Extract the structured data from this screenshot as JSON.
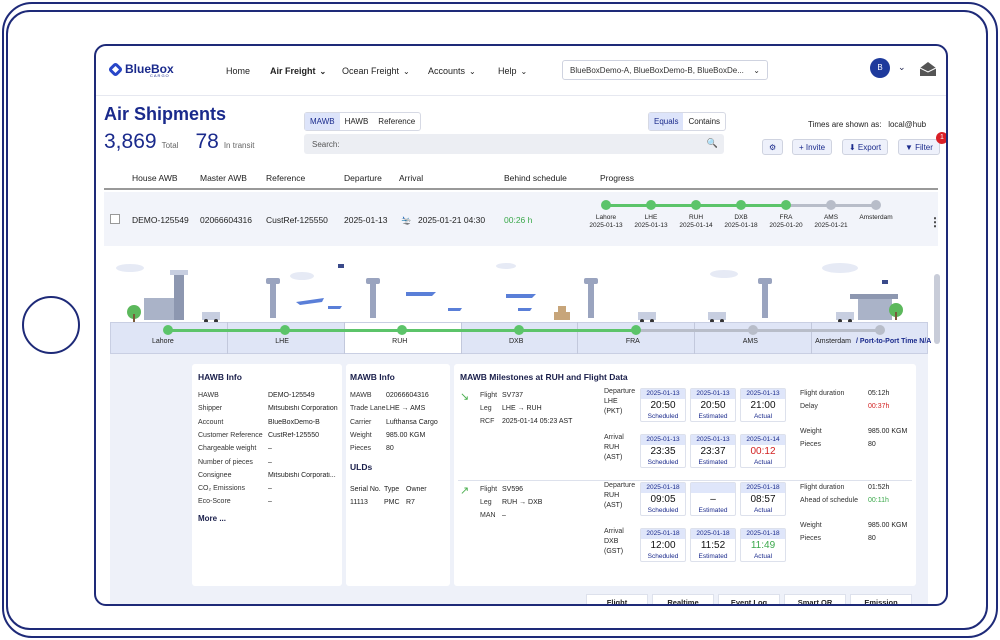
{
  "nav": {
    "brand": "BlueBox",
    "brand_sub": "CARGO",
    "items": [
      {
        "label": "Home"
      },
      {
        "label": "Air Freight"
      },
      {
        "label": "Ocean Freight"
      },
      {
        "label": "Accounts"
      },
      {
        "label": "Help"
      }
    ],
    "account_selector": "BlueBoxDemo-A, BlueBoxDemo-B, BlueBoxDe...",
    "avatar_initial": "B"
  },
  "header": {
    "title": "Air Shipments",
    "total_count": "3,869",
    "total_label": "Total",
    "transit_count": "78",
    "transit_label": "In transit",
    "search_type_tabs": [
      "MAWB",
      "HAWB",
      "Reference"
    ],
    "match_tabs": [
      "Equals",
      "Contains"
    ],
    "search_placeholder": "Search:",
    "times_label": "Times are shown as:",
    "times_value": "local@hub",
    "buttons": {
      "invite": "+ Invite",
      "export": "⬇ Export",
      "filter": "▼ Filter"
    },
    "filter_badge": "1"
  },
  "table": {
    "columns": [
      "House AWB",
      "Master AWB",
      "Reference",
      "Departure",
      "Arrival",
      "Behind schedule",
      "Progress"
    ],
    "row": {
      "house_awb": "DEMO-125549",
      "master_awb": "02066604316",
      "reference": "CustRef-125550",
      "departure": "2025-01-13",
      "arrival": "2025-01-21 04:30",
      "behind": "00:26 h",
      "progress": [
        {
          "code": "Lahore",
          "date": "2025-01-13",
          "done": true
        },
        {
          "code": "LHE",
          "date": "2025-01-13",
          "done": true
        },
        {
          "code": "RUH",
          "date": "2025-01-14",
          "done": true
        },
        {
          "code": "DXB",
          "date": "2025-01-18",
          "done": true
        },
        {
          "code": "FRA",
          "date": "2025-01-20",
          "done": true
        },
        {
          "code": "AMS",
          "date": "2025-01-21",
          "done": false
        },
        {
          "code": "Amsterdam",
          "date": "",
          "done": false
        }
      ]
    }
  },
  "stages": [
    "Lahore",
    "LHE",
    "RUH",
    "DXB",
    "FRA",
    "AMS",
    "Amsterdam"
  ],
  "stage_extra": "/ Port-to-Port Time N/A",
  "hawb_info": {
    "title": "HAWB Info",
    "fields": [
      {
        "k": "HAWB",
        "v": "DEMO-125549"
      },
      {
        "k": "Shipper",
        "v": "Mitsubishi Corporation"
      },
      {
        "k": "Account",
        "v": "BlueBoxDemo-B"
      },
      {
        "k": "Customer Reference",
        "v": "CustRef-125550"
      },
      {
        "k": "Chargeable weight",
        "v": "–"
      },
      {
        "k": "Number of pieces",
        "v": "–"
      },
      {
        "k": "Consignee",
        "v": "Mitsubishi Corporati..."
      },
      {
        "k": "CO₂ Emissions",
        "v": "–"
      },
      {
        "k": "Eco-Score",
        "v": "–"
      }
    ],
    "more": "More ..."
  },
  "mawb_info": {
    "title": "MAWB Info",
    "fields": [
      {
        "k": "MAWB",
        "v": "02066604316"
      },
      {
        "k": "Trade Lane",
        "v": "LHE → AMS"
      },
      {
        "k": "Carrier",
        "v": "Lufthansa Cargo"
      },
      {
        "k": "Weight",
        "v": "985.00  KGM"
      },
      {
        "k": "Pieces",
        "v": "80"
      }
    ],
    "uld_title": "ULDs",
    "uld_headers": [
      "Serial No.",
      "Type",
      "Owner"
    ],
    "uld_row": [
      "11113",
      "PMC",
      "R7"
    ]
  },
  "milestones": {
    "title": "MAWB Milestones at  RUH  and Flight Data",
    "flights": [
      {
        "flight": "SV737",
        "leg": "LHE → RUH",
        "rcf": "2025-01-14 05:23 AST",
        "dep_label": "Departure",
        "dep_place": "LHE",
        "dep_tz": "(PKT)",
        "dep": [
          {
            "date": "2025-01-13",
            "time": "20:50",
            "status": "Scheduled"
          },
          {
            "date": "2025-01-13",
            "time": "20:50",
            "status": "Estimated"
          },
          {
            "date": "2025-01-13",
            "time": "21:00",
            "status": "Actual"
          }
        ],
        "arr_label": "Arrival",
        "arr_place": "RUH",
        "arr_tz": "(AST)",
        "arr": [
          {
            "date": "2025-01-13",
            "time": "23:35",
            "status": "Scheduled"
          },
          {
            "date": "2025-01-13",
            "time": "23:37",
            "status": "Estimated"
          },
          {
            "date": "2025-01-14",
            "time": "00:12",
            "status": "Actual"
          }
        ],
        "side": [
          {
            "k": "Flight duration",
            "v": "05:12h"
          },
          {
            "k": "Delay",
            "v": "00:37h"
          },
          {
            "k": "Weight",
            "v": "985.00  KGM"
          },
          {
            "k": "Pieces",
            "v": "80"
          }
        ]
      },
      {
        "flight": "SV596",
        "leg": "RUH → DXB",
        "man": "–",
        "dep_label": "Departure",
        "dep_place": "RUH",
        "dep_tz": "(AST)",
        "dep": [
          {
            "date": "2025-01-18",
            "time": "09:05",
            "status": "Scheduled"
          },
          {
            "date": "",
            "time": "–",
            "status": "Estimated"
          },
          {
            "date": "2025-01-18",
            "time": "08:57",
            "status": "Actual"
          }
        ],
        "arr_label": "Arrival",
        "arr_place": "DXB",
        "arr_tz": "(GST)",
        "arr": [
          {
            "date": "2025-01-18",
            "time": "12:00",
            "status": "Scheduled"
          },
          {
            "date": "2025-01-18",
            "time": "11:52",
            "status": "Estimated"
          },
          {
            "date": "2025-01-18",
            "time": "11:49",
            "status": "Actual"
          }
        ],
        "side": [
          {
            "k": "Flight duration",
            "v": "01:52h"
          },
          {
            "k": "Ahead of schedule",
            "v": "00:11h"
          },
          {
            "k": "Weight",
            "v": "985.00  KGM"
          },
          {
            "k": "Pieces",
            "v": "80"
          }
        ]
      }
    ]
  },
  "bottom_tabs": [
    "Flight",
    "Realtime",
    "Event Log",
    "Smart QR",
    "Emission"
  ],
  "colors": {
    "brand": "#1a2a8c",
    "green": "#5cc46a",
    "grey": "#b8bdc9",
    "delay_red": "#d22222",
    "ahead_green": "#3aa84a"
  }
}
